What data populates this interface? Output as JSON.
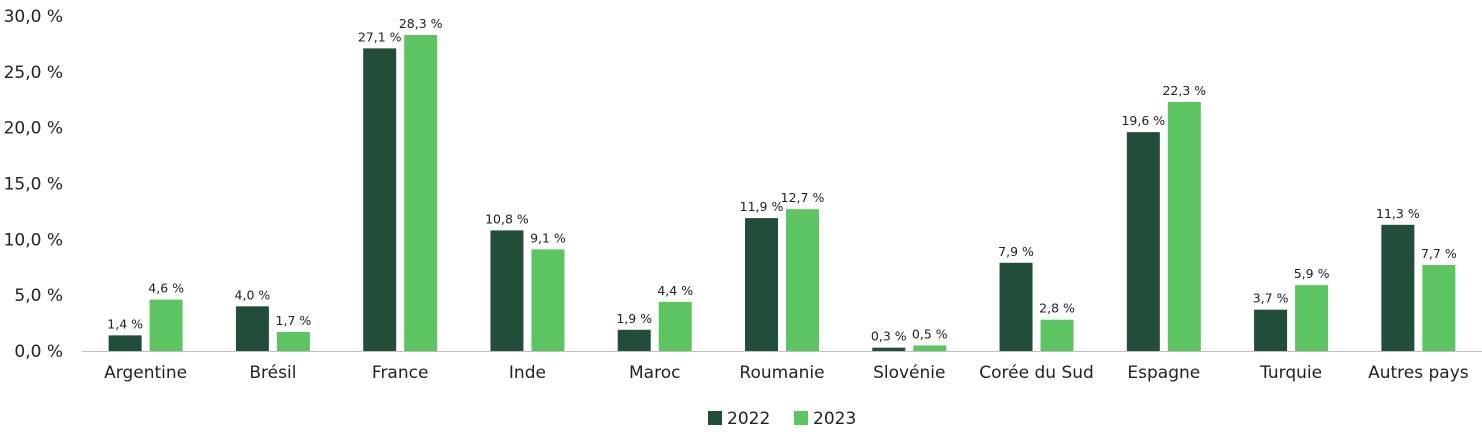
{
  "chart_data": {
    "type": "bar",
    "title": "",
    "xlabel": "",
    "ylabel": "",
    "ylim": [
      0,
      30
    ],
    "y_ticks": [
      0,
      5,
      10,
      15,
      20,
      25,
      30
    ],
    "y_tick_labels": [
      "0,0 %",
      "5,0 %",
      "10,0 %",
      "15,0 %",
      "20,0 %",
      "25,0 %",
      "30,0 %"
    ],
    "grid": false,
    "legend_position": "bottom-center",
    "categories": [
      "Argentine",
      "Brésil",
      "France",
      "Inde",
      "Maroc",
      "Roumanie",
      "Slovénie",
      "Corée du Sud",
      "Espagne",
      "Turquie",
      "Autres pays"
    ],
    "series": [
      {
        "name": "2022",
        "color": "#214d39",
        "values": [
          1.4,
          4.0,
          27.1,
          10.8,
          1.9,
          11.9,
          0.3,
          7.9,
          19.6,
          3.7,
          11.3
        ],
        "labels": [
          "1,4 %",
          "4,0 %",
          "27,1 %",
          "10,8 %",
          "1,9 %",
          "11,9 %",
          "0,3 %",
          "7,9 %",
          "19,6 %",
          "3,7 %",
          "11,3 %"
        ]
      },
      {
        "name": "2023",
        "color": "#5cc461",
        "values": [
          4.6,
          1.7,
          28.3,
          9.1,
          4.4,
          12.7,
          0.5,
          2.8,
          22.3,
          5.9,
          7.7
        ],
        "labels": [
          "4,6 %",
          "1,7 %",
          "28,3 %",
          "9,1 %",
          "4,4 %",
          "12,7 %",
          "0,5 %",
          "2,8 %",
          "22,3 %",
          "5,9 %",
          "7,7 %"
        ]
      }
    ]
  }
}
